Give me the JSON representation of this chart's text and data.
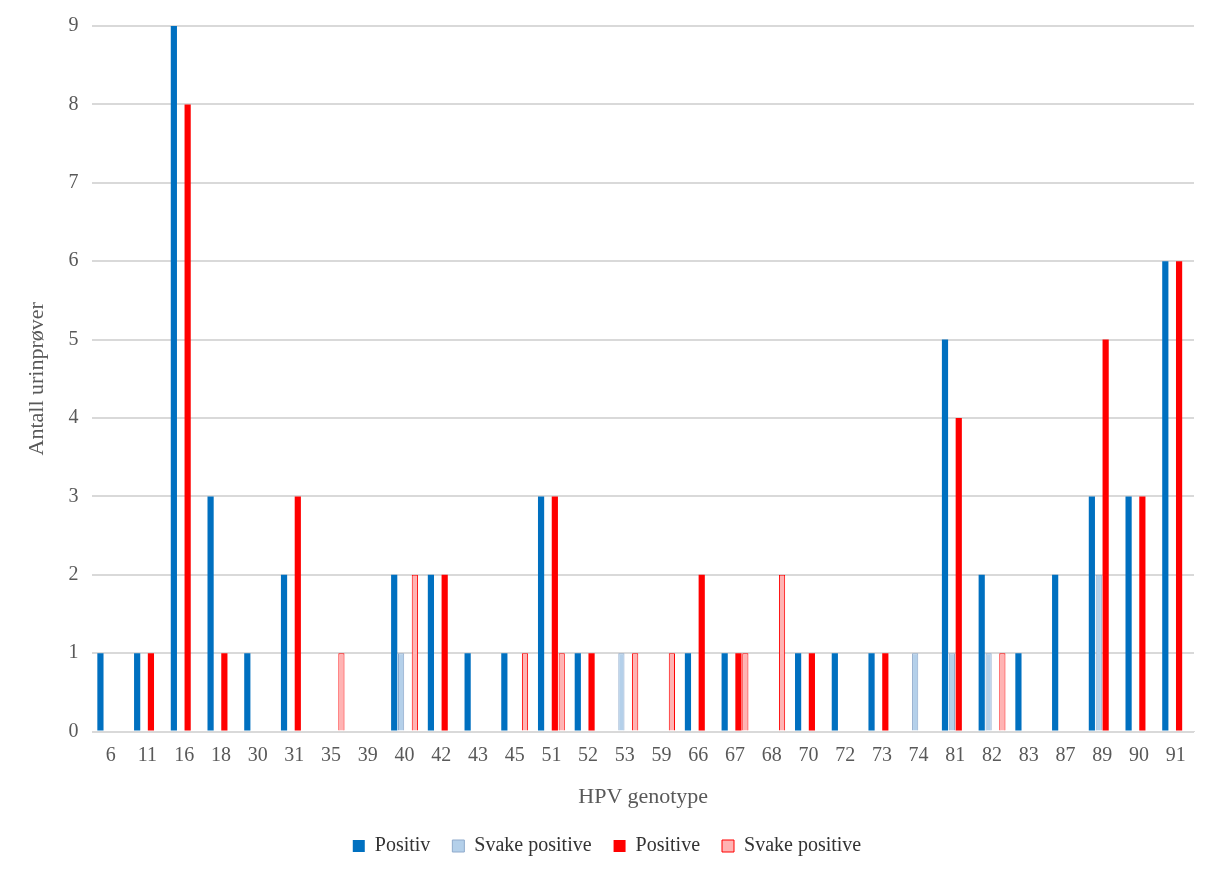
{
  "chart_data": {
    "type": "bar",
    "xlabel": "HPV genotype",
    "ylabel": "Antall urinprøver",
    "categories": [
      "6",
      "11",
      "16",
      "18",
      "30",
      "31",
      "35",
      "39",
      "40",
      "42",
      "43",
      "45",
      "51",
      "52",
      "53",
      "59",
      "66",
      "67",
      "68",
      "70",
      "72",
      "73",
      "74",
      "81",
      "82",
      "83",
      "87",
      "89",
      "90",
      "91"
    ],
    "series": [
      {
        "name": "Positiv",
        "color": "#0070c0",
        "values": [
          1,
          1,
          9,
          3,
          1,
          2,
          0,
          0,
          2,
          2,
          1,
          1,
          3,
          1,
          0,
          0,
          1,
          1,
          0,
          1,
          1,
          1,
          0,
          5,
          2,
          1,
          2,
          3,
          3,
          6
        ]
      },
      {
        "name": "Svake positive",
        "color": "#b4d0ea",
        "values": [
          0,
          0,
          0,
          0,
          0,
          0,
          0,
          0,
          1,
          0,
          0,
          0,
          0,
          0,
          1,
          0,
          0,
          0,
          0,
          0,
          0,
          0,
          1,
          1,
          1,
          0,
          0,
          2,
          0,
          0
        ]
      },
      {
        "name": "Positive",
        "color": "#ff0000",
        "values": [
          0,
          1,
          8,
          1,
          0,
          3,
          0,
          0,
          0,
          2,
          0,
          0,
          3,
          1,
          0,
          0,
          2,
          1,
          0,
          1,
          0,
          1,
          0,
          4,
          0,
          0,
          0,
          5,
          3,
          6
        ]
      },
      {
        "name": "Svake positive",
        "color": "#ffb3b3",
        "values": [
          0,
          0,
          0,
          0,
          0,
          0,
          1,
          0,
          2,
          0,
          0,
          1,
          1,
          0,
          1,
          1,
          0,
          1,
          2,
          0,
          0,
          0,
          0,
          0,
          1,
          0,
          0,
          0,
          0,
          0
        ]
      }
    ],
    "ylim": [
      0,
      9
    ],
    "yticks": [
      0,
      1,
      2,
      3,
      4,
      5,
      6,
      7,
      8,
      9
    ],
    "grid": "y",
    "legend": "bottom"
  }
}
